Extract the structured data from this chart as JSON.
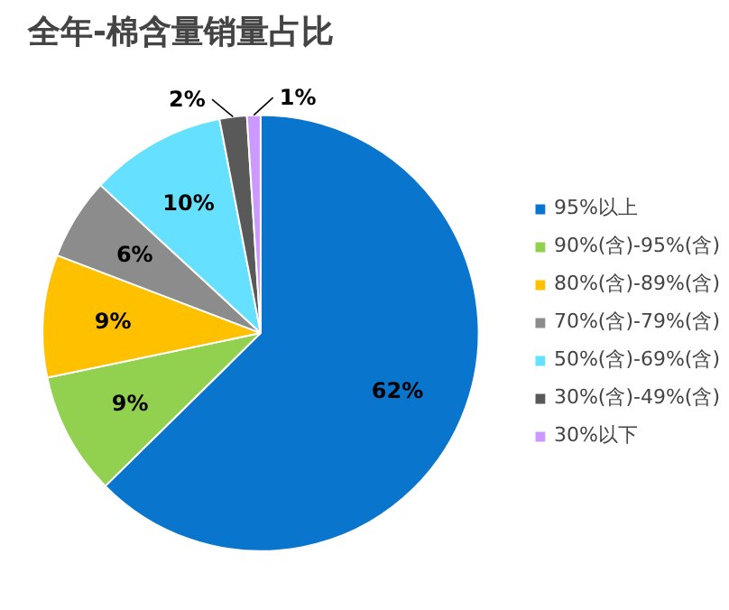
{
  "chart_data": {
    "type": "pie",
    "title": "全年-棉含量销量占比",
    "categories": [
      "95%以上",
      "90%(含)-95%(含)",
      "80%(含)-89%(含)",
      "70%(含)-79%(含)",
      "50%(含)-69%(含)",
      "30%(含)-49%(含)",
      "30%以下"
    ],
    "values": [
      62,
      9,
      9,
      6,
      10,
      2,
      1
    ],
    "value_labels": [
      "62%",
      "9%",
      "9%",
      "6%",
      "10%",
      "2%",
      "1%"
    ],
    "colors": [
      "#0a75cd",
      "#92d050",
      "#ffc000",
      "#8c8c8c",
      "#66e0ff",
      "#595959",
      "#cc99ff"
    ],
    "legend": "right"
  }
}
